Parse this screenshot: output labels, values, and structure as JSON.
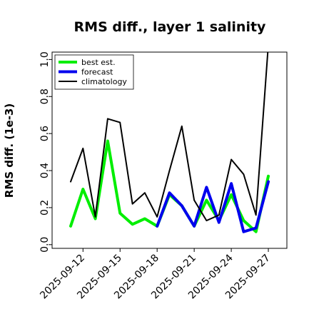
{
  "chart_data": {
    "type": "line",
    "title": "RMS diff., layer 1 salinity",
    "ylabel": "RMS diff. (1e-3)",
    "xlabel": "",
    "ylim": [
      -0.02,
      1.04
    ],
    "y_ticks": [
      0.0,
      0.2,
      0.4,
      0.6,
      0.8,
      1.0
    ],
    "y_tick_labels": [
      "0.0",
      "0.2",
      "0.4",
      "0.6",
      "0.8",
      "1.0"
    ],
    "x_dates": [
      "2025-09-11",
      "2025-09-12",
      "2025-09-13",
      "2025-09-14",
      "2025-09-15",
      "2025-09-16",
      "2025-09-17",
      "2025-09-18",
      "2025-09-19",
      "2025-09-20",
      "2025-09-21",
      "2025-09-22",
      "2025-09-23",
      "2025-09-24",
      "2025-09-25",
      "2025-09-26",
      "2025-09-27"
    ],
    "x_ticks": [
      "2025-09-12",
      "2025-09-15",
      "2025-09-18",
      "2025-09-21",
      "2025-09-24",
      "2025-09-27"
    ],
    "highlight_tick": "2025-09-18",
    "highlight_color": "#228B22",
    "grid": false,
    "legend_position": "top-left",
    "series": [
      {
        "name": "best est.",
        "color": "#00EE00",
        "width": 4,
        "x": [
          "2025-09-11",
          "2025-09-12",
          "2025-09-13",
          "2025-09-14",
          "2025-09-15",
          "2025-09-16",
          "2025-09-17",
          "2025-09-18",
          "2025-09-19",
          "2025-09-20",
          "2025-09-21",
          "2025-09-22",
          "2025-09-23",
          "2025-09-24",
          "2025-09-25",
          "2025-09-26",
          "2025-09-27"
        ],
        "values": [
          0.1,
          0.3,
          0.14,
          0.56,
          0.17,
          0.11,
          0.14,
          0.1,
          0.27,
          0.21,
          0.1,
          0.24,
          0.13,
          0.27,
          0.13,
          0.07,
          0.37
        ]
      },
      {
        "name": "forecast",
        "color": "#0000EE",
        "width": 4,
        "x": [
          "2025-09-18",
          "2025-09-19",
          "2025-09-20",
          "2025-09-21",
          "2025-09-22",
          "2025-09-23",
          "2025-09-24",
          "2025-09-25",
          "2025-09-26",
          "2025-09-27"
        ],
        "values": [
          0.1,
          0.28,
          0.21,
          0.1,
          0.31,
          0.12,
          0.33,
          0.07,
          0.09,
          0.34
        ]
      },
      {
        "name": "climatology",
        "color": "#000000",
        "width": 2,
        "x": [
          "2025-09-11",
          "2025-09-12",
          "2025-09-13",
          "2025-09-14",
          "2025-09-15",
          "2025-09-16",
          "2025-09-17",
          "2025-09-18",
          "2025-09-19",
          "2025-09-20",
          "2025-09-21",
          "2025-09-22",
          "2025-09-23",
          "2025-09-24",
          "2025-09-25",
          "2025-09-26",
          "2025-09-27"
        ],
        "values": [
          0.34,
          0.52,
          0.15,
          0.68,
          0.66,
          0.22,
          0.28,
          0.15,
          0.4,
          0.64,
          0.24,
          0.13,
          0.16,
          0.46,
          0.38,
          0.16,
          1.08
        ]
      }
    ]
  }
}
